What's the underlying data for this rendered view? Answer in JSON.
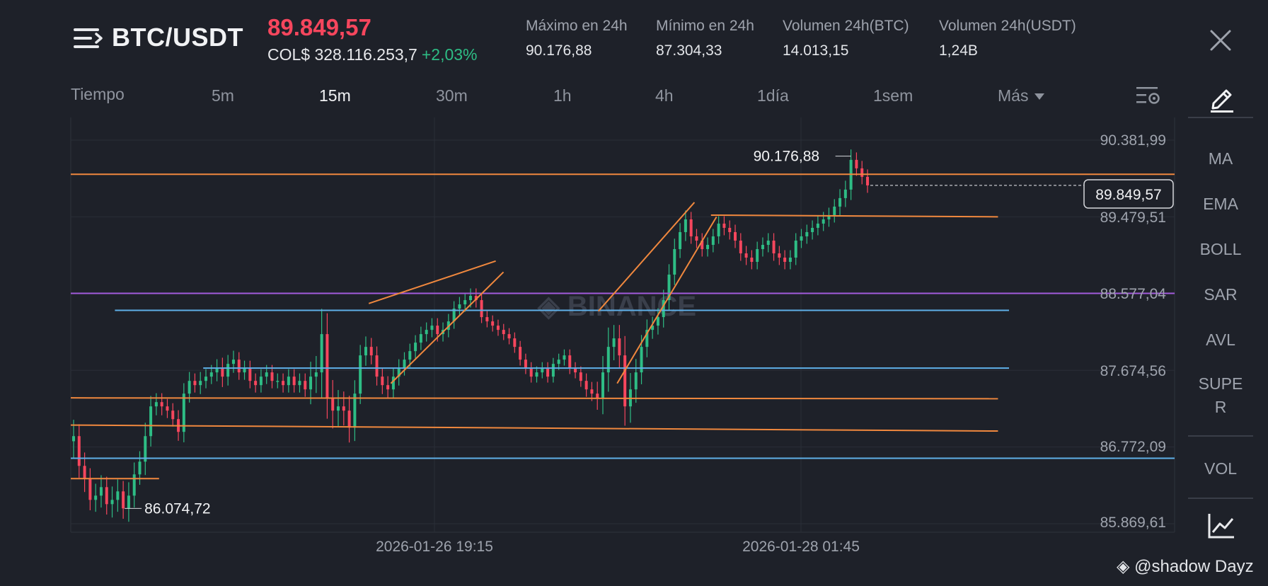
{
  "header": {
    "pair": "BTC/USDT",
    "last_price": "89.849,57",
    "fiat_price": "COL$ 328.116.253,7",
    "change_pct": "+2,03%",
    "stats": [
      {
        "label": "Máximo en 24h",
        "value": "90.176,88"
      },
      {
        "label": "Mínimo en 24h",
        "value": "87.304,33"
      },
      {
        "label": "Volumen 24h(BTC)",
        "value": "14.013,15"
      },
      {
        "label": "Volumen 24h(USDT)",
        "value": "1,24B"
      }
    ]
  },
  "timeframes": {
    "label": "Tiempo",
    "items": [
      "5m",
      "15m",
      "30m",
      "1h",
      "4h",
      "1día",
      "1sem"
    ],
    "active": "15m",
    "more": "Más"
  },
  "indicators": [
    "MA",
    "EMA",
    "BOLL",
    "SAR",
    "AVL",
    "SUPE\nR",
    "VOL"
  ],
  "watermark": "@shadow Dayz",
  "colors": {
    "up": "#2ebd85",
    "down": "#f6465d",
    "orange": "#f0883e",
    "blue": "#5fb0e8",
    "purple": "#a35bdc"
  },
  "chart_data": {
    "type": "candlestick",
    "symbol": "BTC/USDT",
    "interval": "15m",
    "y_ticks": [
      90381.99,
      89479.51,
      88577.04,
      87674.56,
      86772.09,
      85869.61
    ],
    "y_tick_labels": [
      "90.381,99",
      "89.479,51",
      "88.577,04",
      "87.674,56",
      "86.772,09",
      "85.869,61"
    ],
    "x_tick_labels": [
      "2026-01-26 19:15",
      "2026-01-28 01:45"
    ],
    "current_price": 89849.57,
    "current_price_label": "89.849,57",
    "high_label": "90.176,88",
    "low_label": "86.074,72",
    "closes": [
      86900,
      86550,
      86400,
      86150,
      86200,
      86300,
      86100,
      86150,
      86250,
      86050,
      86200,
      86450,
      86600,
      86900,
      87250,
      87300,
      87250,
      87200,
      87100,
      86950,
      87400,
      87550,
      87500,
      87550,
      87600,
      87650,
      87700,
      87600,
      87750,
      87800,
      87650,
      87700,
      87550,
      87500,
      87600,
      87650,
      87550,
      87550,
      87500,
      87600,
      87500,
      87550,
      87450,
      87600,
      87650,
      88100,
      87350,
      87200,
      87250,
      87200,
      87000,
      87400,
      87850,
      87950,
      87850,
      87600,
      87500,
      87450,
      87600,
      87700,
      87800,
      87900,
      88000,
      88100,
      88150,
      88200,
      88100,
      88150,
      88250,
      88400,
      88450,
      88500,
      88550,
      88500,
      88300,
      88250,
      88200,
      88150,
      88100,
      88050,
      87950,
      87800,
      87700,
      87600,
      87650,
      87700,
      87600,
      87750,
      87800,
      87850,
      87700,
      87650,
      87550,
      87450,
      87400,
      87350,
      87650,
      87950,
      88050,
      87850,
      87250,
      87450,
      87650,
      87950,
      88150,
      88200,
      88300,
      88500,
      88800,
      89100,
      89300,
      89450,
      89250,
      89200,
      89100,
      89150,
      89250,
      89400,
      89350,
      89300,
      89200,
      89050,
      89000,
      88950,
      89100,
      89150,
      89200,
      89050,
      89000,
      88950,
      89000,
      89200,
      89250,
      89300,
      89350,
      89400,
      89450,
      89500,
      89600,
      89700,
      89800,
      90150,
      90050,
      89950,
      89849.57
    ],
    "ranges": [
      550,
      400,
      450,
      350,
      400,
      400,
      350,
      450,
      400,
      350,
      450,
      400,
      350,
      450,
      350,
      300,
      300,
      250,
      250,
      300,
      350,
      300,
      250,
      300,
      250,
      250,
      300,
      350,
      300,
      300,
      250,
      250,
      250,
      250,
      250,
      250,
      250,
      250,
      250,
      250,
      250,
      250,
      250,
      500,
      550,
      850,
      700,
      600,
      550,
      500,
      500,
      450,
      350,
      350,
      300,
      300,
      300,
      300,
      300,
      300,
      250,
      250,
      250,
      250,
      250,
      250,
      250,
      250,
      250,
      250,
      250,
      250,
      250,
      250,
      200,
      200,
      200,
      200,
      200,
      200,
      200,
      200,
      200,
      200,
      200,
      200,
      200,
      200,
      200,
      200,
      200,
      200,
      200,
      250,
      250,
      400,
      550,
      650,
      450,
      450,
      650,
      550,
      450,
      400,
      350,
      300,
      300,
      350,
      350,
      350,
      300,
      300,
      250,
      250,
      250,
      250,
      250,
      250,
      250,
      250,
      250,
      250,
      250,
      250,
      250,
      250,
      250,
      250,
      250,
      250,
      250,
      250,
      250,
      250,
      250,
      250,
      250,
      250,
      250,
      300,
      300,
      350,
      250,
      250,
      250
    ],
    "horizontal_lines": [
      {
        "color": "orange",
        "from": 0.0,
        "to": 1.0,
        "price": 89980
      },
      {
        "color": "orange",
        "from": 0.58,
        "to": 0.84,
        "price": 89500,
        "price_end": 89480
      },
      {
        "color": "purple",
        "from": 0.0,
        "to": 1.0,
        "price": 88580
      },
      {
        "color": "blue",
        "from": 0.04,
        "to": 0.85,
        "price": 88380
      },
      {
        "color": "blue",
        "from": 0.12,
        "to": 0.85,
        "price": 87700
      },
      {
        "color": "orange",
        "from": 0.0,
        "to": 0.84,
        "price": 87350,
        "price_end": 87340
      },
      {
        "color": "orange",
        "from": 0.0,
        "to": 0.84,
        "price": 87030,
        "price_end": 86960
      },
      {
        "color": "blue",
        "from": 0.0,
        "to": 1.0,
        "price": 86640
      },
      {
        "color": "orange",
        "from": 0.0,
        "to": 0.08,
        "price": 86400
      }
    ],
    "trend_lines": [
      {
        "color": "orange",
        "x1": 0.27,
        "p1": 88460,
        "x2": 0.385,
        "p2": 88960
      },
      {
        "color": "orange",
        "x1": 0.29,
        "p1": 87520,
        "x2": 0.392,
        "p2": 88830
      },
      {
        "color": "orange",
        "x1": 0.478,
        "p1": 88370,
        "x2": 0.565,
        "p2": 89650
      },
      {
        "color": "orange",
        "x1": 0.495,
        "p1": 87520,
        "x2": 0.585,
        "p2": 89480
      }
    ]
  }
}
